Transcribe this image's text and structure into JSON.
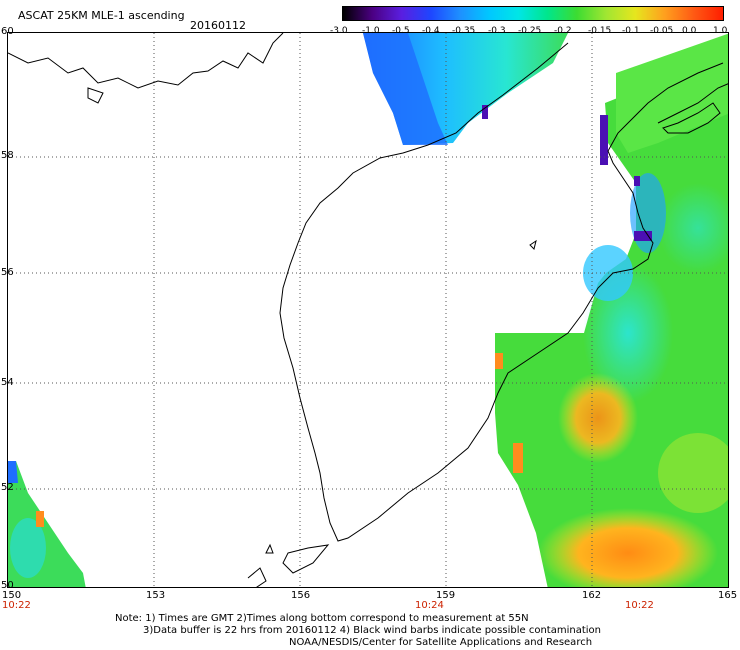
{
  "header": {
    "title": "ASCAT 25KM MLE-1 ascending",
    "date": "20160112"
  },
  "colorbar": {
    "labels": [
      "-3.0",
      "-1.0",
      "-0.5",
      "-0.4",
      "-0.35",
      "-0.3",
      "-0.25",
      "-0.2",
      "-0.15",
      "-0.1",
      "-0.05",
      "0.0",
      "1.0"
    ],
    "colors": [
      "#000000",
      "#4b0082",
      "#5a1ee0",
      "#1e46ff",
      "#1e90ff",
      "#00c8ff",
      "#00e6e6",
      "#00e68c",
      "#3cdc32",
      "#a0e632",
      "#e6e61e",
      "#ffa01e",
      "#ff5a14",
      "#ff1e00"
    ]
  },
  "map": {
    "lat_labels": [
      "60",
      "58",
      "56",
      "54",
      "52",
      "50"
    ],
    "lon_labels": [
      "150",
      "153",
      "156",
      "159",
      "162",
      "165"
    ],
    "time_labels": [
      "10:22",
      "10:24",
      "10:22"
    ]
  },
  "footer": {
    "note1": "Note: 1) Times are GMT 2)Times along bottom correspond to measurement at 55N",
    "note2": "3)Data buffer is 22 hrs from 20160112 4) Black wind barbs indicate possible contamination",
    "credit": "NOAA/NESDIS/Center for Satellite Applications and Research"
  }
}
